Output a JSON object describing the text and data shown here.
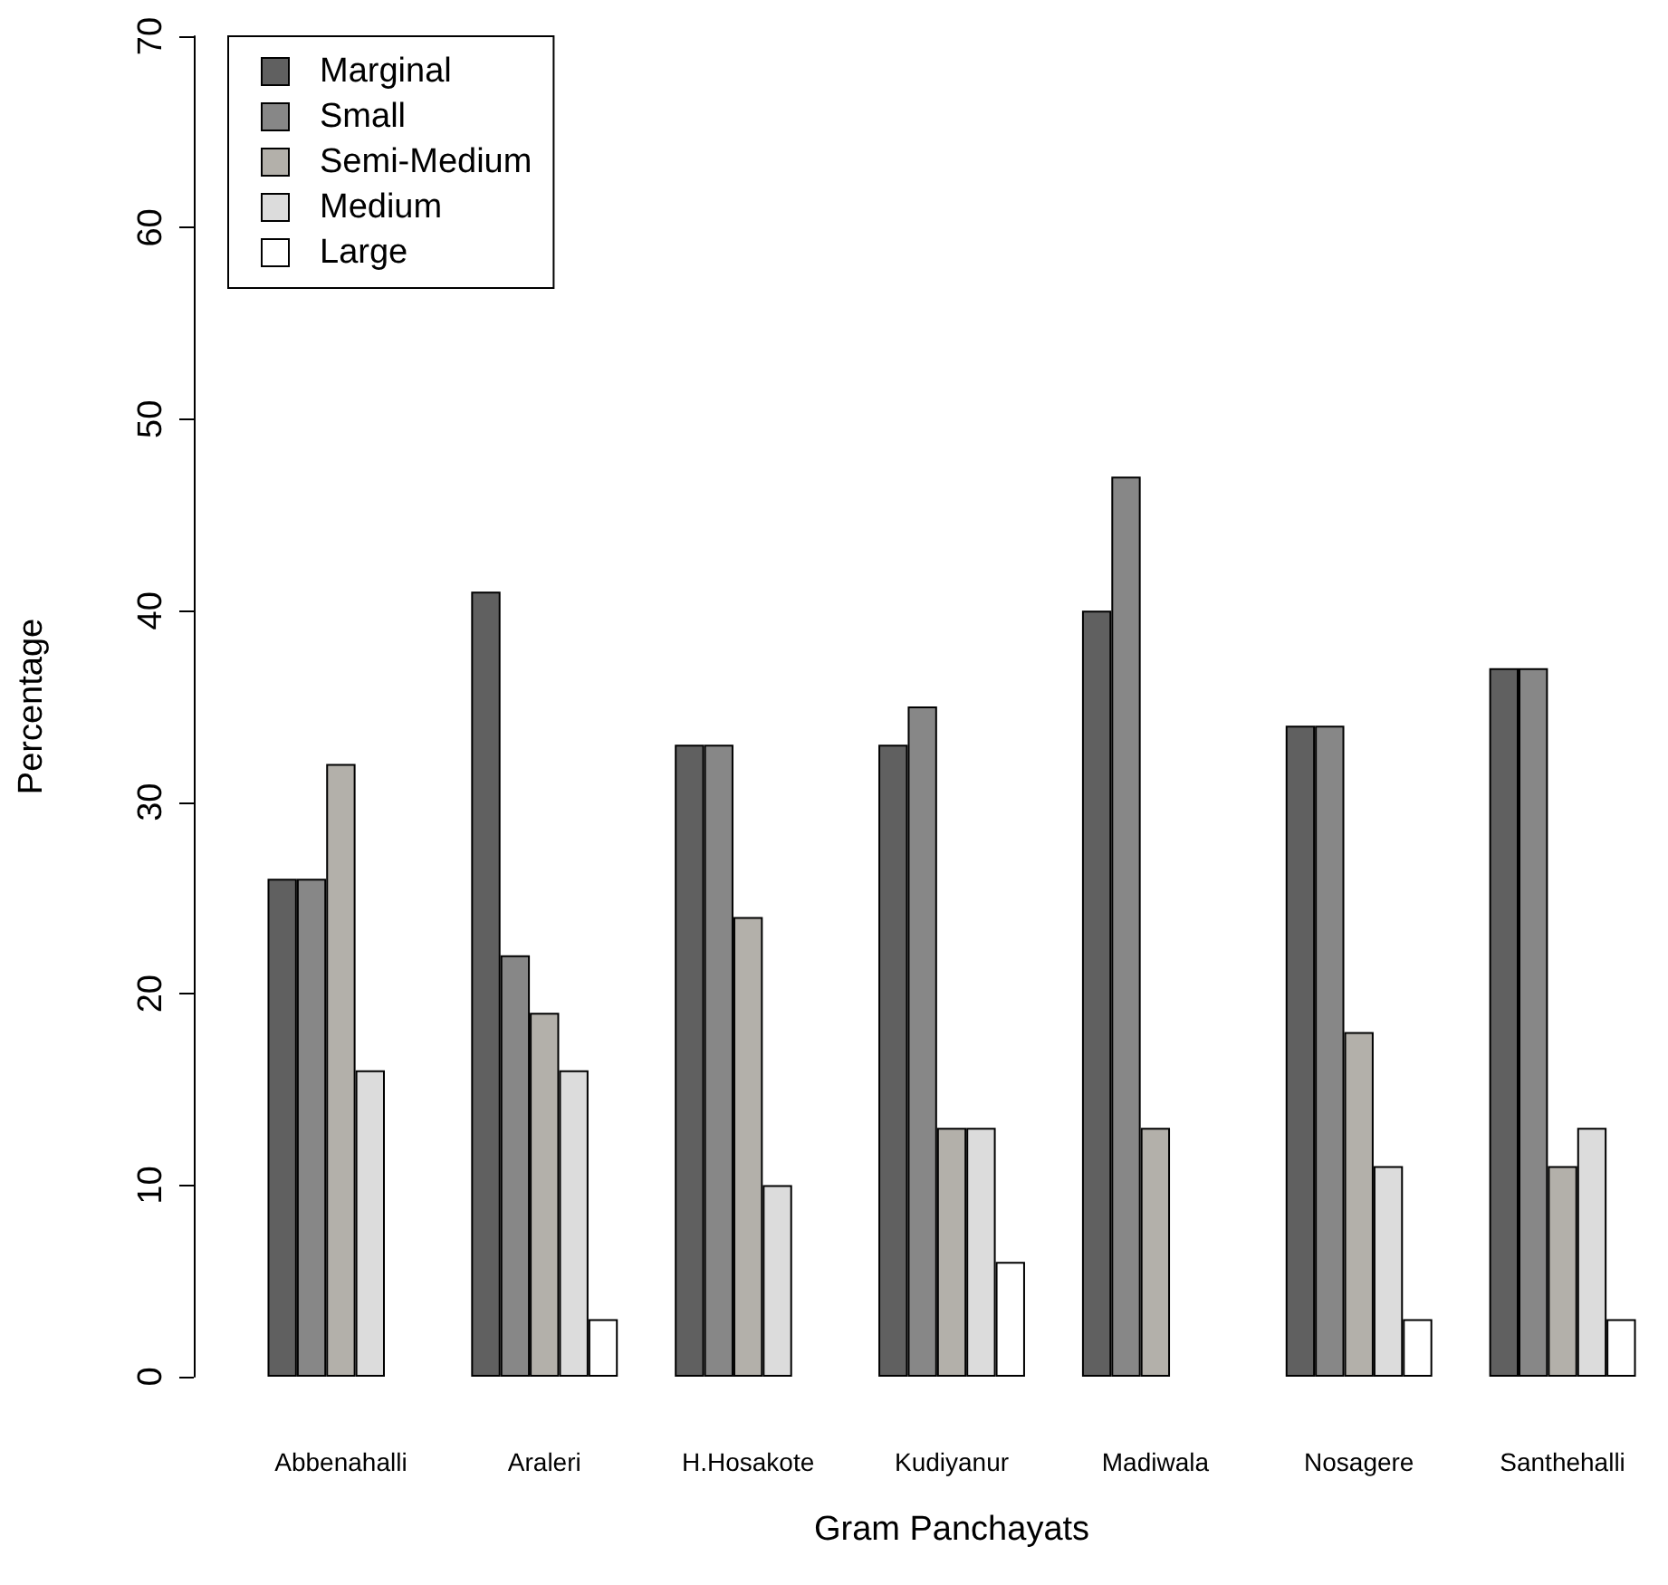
{
  "chart_data": {
    "type": "bar",
    "xlabel": "Gram Panchayats",
    "ylabel": "Percentage",
    "categories": [
      "Abbenahalli",
      "Araleri",
      "H.Hosakote",
      "Kudiyanur",
      "Madiwala",
      "Nosagere",
      "Santhehalli"
    ],
    "series": [
      {
        "name": "Marginal",
        "color": "#606060",
        "values": [
          26,
          41,
          33,
          33,
          40,
          34,
          37
        ]
      },
      {
        "name": "Small",
        "color": "#878787",
        "values": [
          26,
          22,
          33,
          35,
          47,
          34,
          37
        ]
      },
      {
        "name": "Semi-Medium",
        "color": "#b3b0aa",
        "values": [
          32,
          19,
          24,
          13,
          13,
          18,
          11
        ]
      },
      {
        "name": "Medium",
        "color": "#dcdcdc",
        "values": [
          16,
          16,
          10,
          13,
          0,
          11,
          13
        ]
      },
      {
        "name": "Large",
        "color": "#ffffff",
        "values": [
          0,
          3,
          0,
          6,
          0,
          3,
          3
        ]
      }
    ],
    "ylim": [
      0,
      70
    ],
    "yticks": [
      0,
      10,
      20,
      30,
      40,
      50,
      60,
      70
    ],
    "grid": false,
    "legend": "top left"
  }
}
